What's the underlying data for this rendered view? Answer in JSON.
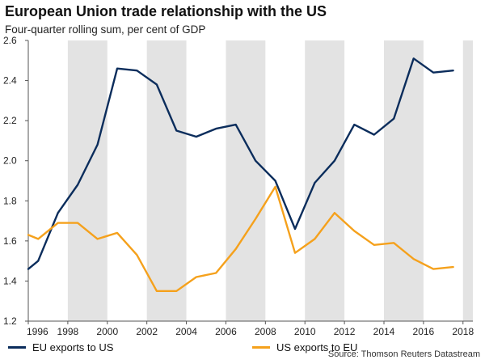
{
  "title": "European Union trade relationship with the US",
  "subtitle": "Four-quarter rolling sum, per cent of GDP",
  "source": "Source: Thomson Reuters Datastream",
  "colors": {
    "eu_exports": "#0b2d5c",
    "us_exports": "#f5a11c",
    "band": "#e3e3e3",
    "axis": "#555555"
  },
  "chart_data": {
    "type": "line",
    "title": "European Union trade relationship with the US",
    "subtitle": "Four-quarter rolling sum, per cent of GDP",
    "xlabel": "",
    "ylabel": "",
    "xlim": [
      1996,
      2018.5
    ],
    "ylim": [
      1.2,
      2.6
    ],
    "x_ticks": [
      "1996",
      "1998",
      "2000",
      "2002",
      "2004",
      "2006",
      "2008",
      "2010",
      "2012",
      "2014",
      "2016",
      "2018"
    ],
    "y_ticks": [
      "1.2",
      "1.4",
      "1.6",
      "1.8",
      "2.0",
      "2.2",
      "2.4",
      "2.6"
    ],
    "shaded_bands": [
      [
        1998,
        2000
      ],
      [
        2002,
        2004
      ],
      [
        2006,
        2008
      ],
      [
        2010,
        2012
      ],
      [
        2014,
        2016
      ],
      [
        2018,
        2018.5
      ]
    ],
    "grid": false,
    "legend_position": "bottom",
    "series": [
      {
        "name": "EU exports to US",
        "color": "#0b2d5c",
        "x": [
          1996,
          1996.5,
          1997.5,
          1998.5,
          1999.5,
          2000.5,
          2001.5,
          2002.5,
          2003.5,
          2004.5,
          2005.5,
          2006.5,
          2007.5,
          2008.5,
          2009.5,
          2010.5,
          2011.5,
          2012.5,
          2013.5,
          2014.5,
          2015.5,
          2016.5,
          2017.5
        ],
        "y": [
          1.46,
          1.5,
          1.74,
          1.88,
          2.08,
          2.46,
          2.45,
          2.38,
          2.15,
          2.12,
          2.16,
          2.18,
          2.0,
          1.9,
          1.66,
          1.89,
          2.0,
          2.18,
          2.13,
          2.21,
          2.51,
          2.44,
          2.45
        ]
      },
      {
        "name": "US exports to EU",
        "color": "#f5a11c",
        "x": [
          1996,
          1996.5,
          1997.5,
          1998.5,
          1999.5,
          2000.5,
          2001.5,
          2002.5,
          2003.5,
          2004.5,
          2005.5,
          2006.5,
          2007.5,
          2008.5,
          2009.5,
          2010.5,
          2011.5,
          2012.5,
          2013.5,
          2014.5,
          2015.5,
          2016.5,
          2017.5
        ],
        "y": [
          1.63,
          1.61,
          1.69,
          1.69,
          1.61,
          1.64,
          1.53,
          1.35,
          1.35,
          1.42,
          1.44,
          1.56,
          1.71,
          1.87,
          1.54,
          1.61,
          1.74,
          1.65,
          1.58,
          1.59,
          1.51,
          1.46,
          1.47
        ]
      }
    ]
  },
  "legend": [
    {
      "label": "EU exports to US",
      "color": "#0b2d5c"
    },
    {
      "label": "US exports to EU",
      "color": "#f5a11c"
    }
  ]
}
